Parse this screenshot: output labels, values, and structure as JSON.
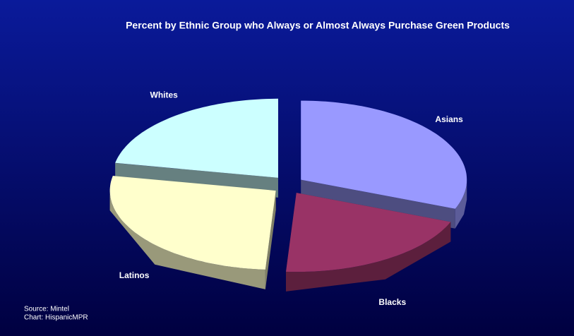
{
  "chart_data": {
    "type": "pie3d",
    "title": "Percent by Ethnic Group who Always or Almost Always Purchase Green Products",
    "categories": [
      "Asians",
      "Blacks",
      "Latinos",
      "Whites"
    ],
    "values": [
      31,
      20,
      27,
      22
    ],
    "colors": [
      "#9999ff",
      "#993366",
      "#ffffcc",
      "#ccffff"
    ],
    "source": "Source: Mintel",
    "credit": "Chart: HispanicMPR"
  }
}
